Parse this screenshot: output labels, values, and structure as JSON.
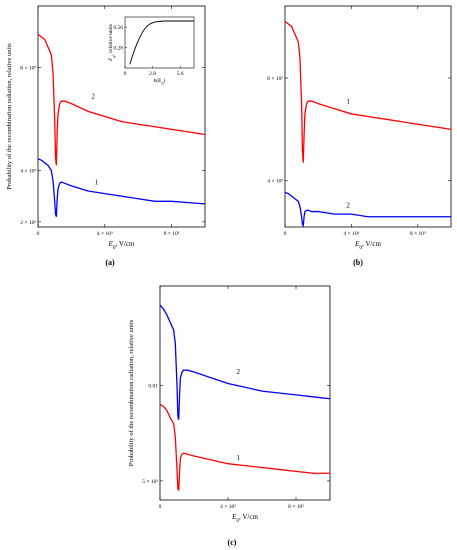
{
  "chart_data": [
    {
      "panel": "(a)",
      "type": "line",
      "ylabel": "Probability of the recombination radiation, relative units",
      "xlabel_var": "E",
      "xlabel_sub": "0",
      "xlabel_unit": ", V/cm",
      "xlim": [
        0,
        10000
      ],
      "ylim": [
        0.0018,
        0.0104
      ],
      "x_ticks": [
        {
          "v": 0,
          "label": "0"
        },
        {
          "v": 4000,
          "label": "4 × 10³"
        },
        {
          "v": 8000,
          "label": "8 × 10³"
        }
      ],
      "y_ticks": [
        {
          "v": 0.002,
          "label": "2 × 10³"
        },
        {
          "v": 0.004,
          "label": "4 × 10³"
        },
        {
          "v": 0.008,
          "label": "8 × 10³"
        }
      ],
      "series": [
        {
          "name": "2",
          "color": "#ff0000",
          "x": [
            0,
            200,
            400,
            600,
            800,
            900,
            1000,
            1050,
            1100,
            1150,
            1200,
            1300,
            1400,
            1600,
            2000,
            3000,
            4000,
            5000,
            6000,
            7000,
            8000,
            9000,
            10000
          ],
          "y": [
            0.0093,
            0.0092,
            0.0091,
            0.0088,
            0.0085,
            0.0078,
            0.006,
            0.0045,
            0.0042,
            0.0055,
            0.0062,
            0.0066,
            0.0067,
            0.0067,
            0.0066,
            0.0063,
            0.0061,
            0.0059,
            0.0058,
            0.0057,
            0.0056,
            0.0055,
            0.0054
          ]
        },
        {
          "name": "1",
          "color": "#0000ff",
          "x": [
            0,
            200,
            400,
            600,
            800,
            900,
            1000,
            1050,
            1100,
            1150,
            1200,
            1300,
            1400,
            1600,
            2000,
            3000,
            4000,
            5000,
            6000,
            7000,
            8000,
            9000,
            10000
          ],
          "y": [
            0.00445,
            0.0044,
            0.0043,
            0.0042,
            0.004,
            0.0036,
            0.0028,
            0.0023,
            0.0022,
            0.0029,
            0.0033,
            0.0035,
            0.00355,
            0.0035,
            0.0034,
            0.0032,
            0.0031,
            0.003,
            0.0029,
            0.0028,
            0.0028,
            0.00275,
            0.0027
          ]
        }
      ],
      "labels": [
        {
          "text": "2",
          "x": 3300,
          "y": 0.0068
        },
        {
          "text": "1",
          "x": 3500,
          "y": 0.00345
        }
      ],
      "inset": {
        "type": "line",
        "ylabel_var": "F",
        "ylabel_sub": "p",
        "ylabel_rest": ", relative units",
        "xlabel": "b(E",
        "xlabel_sub": "0",
        "xlabel_end": ")",
        "xlim": [
          0,
          7
        ],
        "ylim": [
          0,
          0.7
        ],
        "x_ticks": [
          {
            "v": 0,
            "label": "0"
          },
          {
            "v": 2.8,
            "label": "2.8"
          },
          {
            "v": 5.6,
            "label": "5.6"
          }
        ],
        "y_ticks": [
          {
            "v": 0.28,
            "label": "0.28"
          },
          {
            "v": 0.56,
            "label": "0.56"
          }
        ],
        "x": [
          0.5,
          0.6,
          0.8,
          1.0,
          1.2,
          1.5,
          1.8,
          2.2,
          2.6,
          3.0,
          3.5,
          4.0,
          5.0,
          6.0,
          7.0
        ],
        "y": [
          0.05,
          0.1,
          0.18,
          0.26,
          0.33,
          0.42,
          0.5,
          0.57,
          0.61,
          0.63,
          0.64,
          0.645,
          0.645,
          0.645,
          0.645
        ]
      }
    },
    {
      "panel": "(b)",
      "type": "line",
      "ylabel": "",
      "xlabel_var": "E",
      "xlabel_sub": "0",
      "xlabel_unit": ", V/cm",
      "xlim": [
        0,
        10000
      ],
      "ylim": [
        0.0022,
        0.0108
      ],
      "x_ticks": [
        {
          "v": 0,
          "label": "0"
        },
        {
          "v": 4000,
          "label": "4 × 10³"
        },
        {
          "v": 8000,
          "label": "8 × 10³"
        }
      ],
      "y_ticks": [
        {
          "v": 0.004,
          "label": "4 × 10³"
        },
        {
          "v": 0.008,
          "label": "8 × 10³"
        }
      ],
      "series": [
        {
          "name": "1",
          "color": "#ff0000",
          "x": [
            0,
            200,
            400,
            600,
            800,
            900,
            1000,
            1050,
            1100,
            1150,
            1200,
            1300,
            1400,
            1600,
            2000,
            3000,
            4000,
            5000,
            6000,
            7000,
            8000,
            9000,
            10000
          ],
          "y": [
            0.0102,
            0.0101,
            0.01,
            0.0097,
            0.0094,
            0.0088,
            0.007,
            0.0052,
            0.0047,
            0.0058,
            0.0066,
            0.007,
            0.0071,
            0.0071,
            0.007,
            0.0068,
            0.0066,
            0.0065,
            0.0064,
            0.0063,
            0.0062,
            0.0061,
            0.006
          ]
        },
        {
          "name": "2",
          "color": "#0000ff",
          "x": [
            0,
            200,
            400,
            600,
            800,
            900,
            1000,
            1050,
            1100,
            1150,
            1200,
            1300,
            1400,
            1600,
            2000,
            3000,
            4000,
            5000,
            6000,
            7000,
            8000,
            9000,
            10000
          ],
          "y": [
            0.00355,
            0.0035,
            0.0034,
            0.0033,
            0.0032,
            0.003,
            0.0026,
            0.0023,
            0.00225,
            0.0026,
            0.0028,
            0.00285,
            0.00285,
            0.0028,
            0.0028,
            0.0027,
            0.0027,
            0.0026,
            0.0026,
            0.0026,
            0.0026,
            0.0026,
            0.0026
          ]
        }
      ],
      "labels": [
        {
          "text": "1",
          "x": 3800,
          "y": 0.007
        },
        {
          "text": "2",
          "x": 3800,
          "y": 0.00295
        }
      ]
    },
    {
      "panel": "(c)",
      "type": "line",
      "ylabel": "Probability of the recombination radiation, relative units",
      "xlabel_var": "E",
      "xlabel_sub": "0",
      "xlabel_unit": ", V/cm",
      "xlim": [
        0,
        10000
      ],
      "ylim": [
        0.004,
        0.0152
      ],
      "x_ticks": [
        {
          "v": 0,
          "label": "0"
        },
        {
          "v": 4000,
          "label": "4 × 10³"
        },
        {
          "v": 8000,
          "label": "8 × 10³"
        }
      ],
      "y_ticks": [
        {
          "v": 0.005,
          "label": "5 × 10³"
        },
        {
          "v": 0.01,
          "label": "0.01"
        }
      ],
      "series": [
        {
          "name": "2",
          "color": "#0000ff",
          "x": [
            0,
            200,
            400,
            600,
            800,
            900,
            1000,
            1050,
            1100,
            1150,
            1200,
            1300,
            1400,
            1600,
            2000,
            3000,
            4000,
            5000,
            6000,
            7000,
            8000,
            9000,
            10000
          ],
          "y": [
            0.0142,
            0.014,
            0.0137,
            0.0133,
            0.0129,
            0.0122,
            0.01,
            0.0084,
            0.0082,
            0.0095,
            0.0104,
            0.0107,
            0.0108,
            0.0108,
            0.0107,
            0.0104,
            0.0101,
            0.0099,
            0.0097,
            0.0096,
            0.0095,
            0.0094,
            0.0093
          ]
        },
        {
          "name": "1",
          "color": "#ff0000",
          "x": [
            0,
            200,
            400,
            600,
            800,
            900,
            1000,
            1050,
            1100,
            1150,
            1200,
            1300,
            1400,
            1600,
            2000,
            3000,
            4000,
            5000,
            6000,
            7000,
            8000,
            9000,
            10000
          ],
          "y": [
            0.009,
            0.0089,
            0.0087,
            0.0083,
            0.008,
            0.0073,
            0.0056,
            0.0046,
            0.0045,
            0.0055,
            0.0062,
            0.0064,
            0.00645,
            0.0064,
            0.0063,
            0.0061,
            0.0059,
            0.0058,
            0.0057,
            0.0056,
            0.0055,
            0.0054,
            0.0054
          ]
        }
      ],
      "labels": [
        {
          "text": "2",
          "x": 4600,
          "y": 0.0106
        },
        {
          "text": "1",
          "x": 4600,
          "y": 0.0061
        }
      ]
    }
  ]
}
